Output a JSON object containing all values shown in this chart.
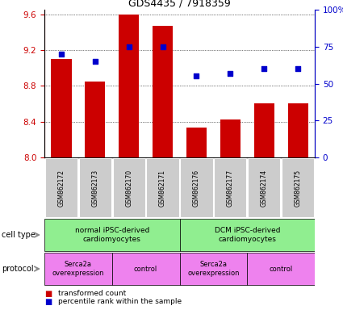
{
  "title": "GDS4435 / 7918359",
  "samples": [
    "GSM862172",
    "GSM862173",
    "GSM862170",
    "GSM862171",
    "GSM862176",
    "GSM862177",
    "GSM862174",
    "GSM862175"
  ],
  "red_values": [
    9.1,
    8.85,
    9.6,
    9.47,
    8.33,
    8.42,
    8.6,
    8.6
  ],
  "blue_values": [
    70,
    65,
    75,
    75,
    55,
    57,
    60,
    60
  ],
  "ylim_left": [
    8.0,
    9.65
  ],
  "ylim_right": [
    0,
    100
  ],
  "left_ticks": [
    8.0,
    8.4,
    8.8,
    9.2,
    9.6
  ],
  "right_ticks": [
    0,
    25,
    50,
    75,
    100
  ],
  "right_tick_labels": [
    "0",
    "25",
    "50",
    "75",
    "100%"
  ],
  "cell_type_groups": [
    {
      "label": "normal iPSC-derived\ncardiomyocytes",
      "start": 0,
      "end": 4,
      "color": "#90EE90"
    },
    {
      "label": "DCM iPSC-derived\ncardiomyocytes",
      "start": 4,
      "end": 8,
      "color": "#90EE90"
    }
  ],
  "protocol_groups": [
    {
      "label": "Serca2a\noverexpression",
      "start": 0,
      "end": 2,
      "color": "#EE82EE"
    },
    {
      "label": "control",
      "start": 2,
      "end": 4,
      "color": "#EE82EE"
    },
    {
      "label": "Serca2a\noverexpression",
      "start": 4,
      "end": 6,
      "color": "#EE82EE"
    },
    {
      "label": "control",
      "start": 6,
      "end": 8,
      "color": "#EE82EE"
    }
  ],
  "bar_color": "#CC0000",
  "dot_color": "#0000CC",
  "bg_color": "#FFFFFF",
  "sample_bg_color": "#CCCCCC",
  "title_color": "#000000",
  "left_axis_color": "#CC0000",
  "right_axis_color": "#0000CC"
}
